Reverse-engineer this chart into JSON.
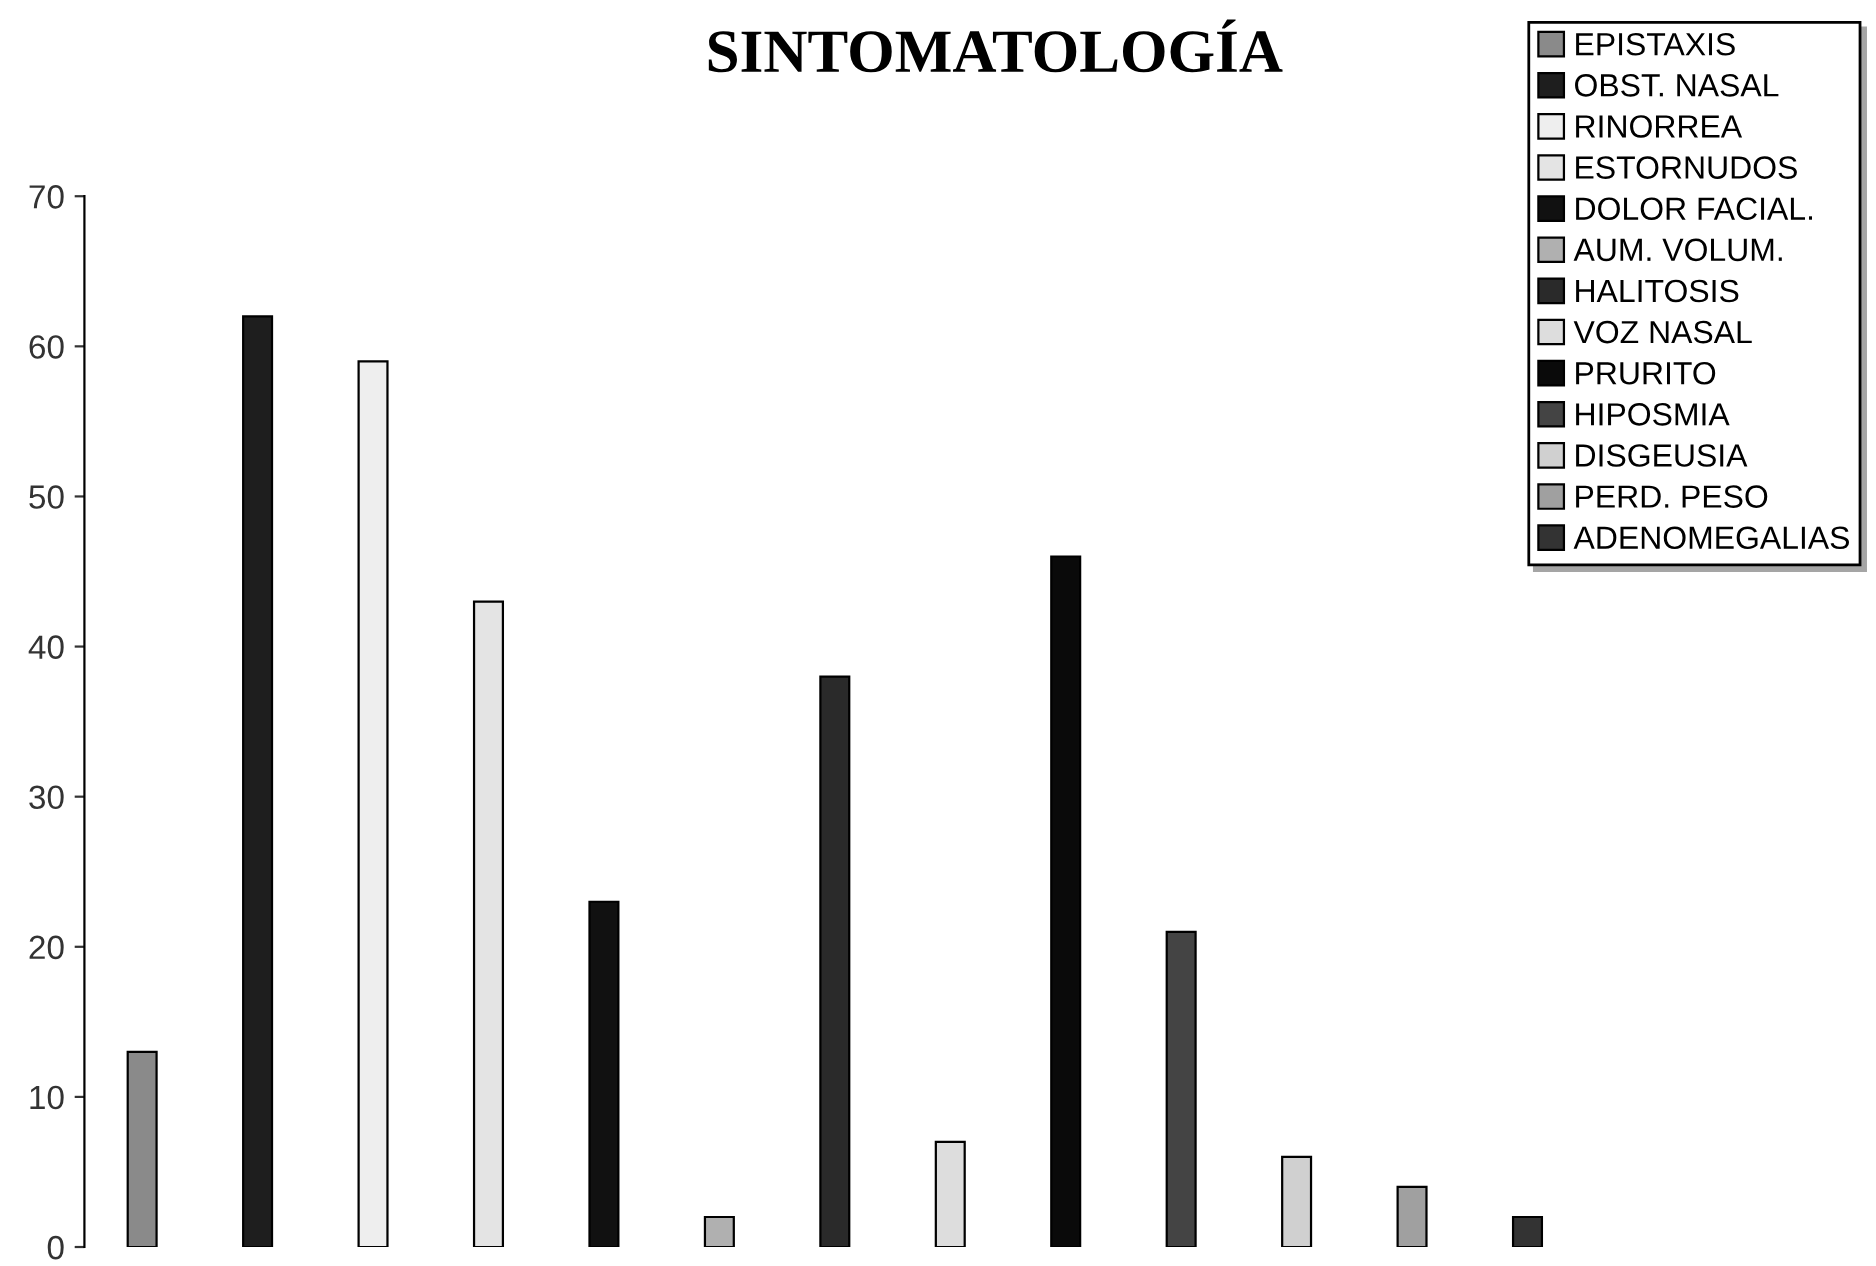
{
  "chart_data": {
    "type": "bar",
    "title": "SINTOMATOLOGÍA",
    "stacked": true,
    "categories": [
      null,
      null,
      null,
      null,
      null,
      null,
      null,
      null,
      null,
      null,
      null,
      null,
      null
    ],
    "series": [
      {
        "name": "EPISTAXIS",
        "color": "#8a8a8a",
        "values": [
          13,
          null,
          null,
          null,
          null,
          null,
          null,
          null,
          null,
          null,
          null,
          null,
          null
        ]
      },
      {
        "name": "OBST. NASAL",
        "color": "#1e1e1e",
        "values": [
          null,
          62,
          null,
          null,
          null,
          null,
          null,
          null,
          null,
          null,
          null,
          null,
          null
        ]
      },
      {
        "name": "RINORREA",
        "color": "#eeeeee",
        "values": [
          null,
          null,
          59,
          null,
          null,
          null,
          null,
          null,
          null,
          null,
          null,
          null,
          null
        ]
      },
      {
        "name": "ESTORNUDOS",
        "color": "#e4e4e4",
        "values": [
          null,
          null,
          null,
          43,
          null,
          null,
          null,
          null,
          null,
          null,
          null,
          null,
          null
        ]
      },
      {
        "name": "DOLOR FACIAL.",
        "color": "#111111",
        "values": [
          null,
          null,
          null,
          null,
          23,
          null,
          null,
          null,
          null,
          null,
          null,
          null,
          null
        ]
      },
      {
        "name": "AUM. VOLUM.",
        "color": "#b0b0b0",
        "values": [
          null,
          null,
          null,
          null,
          null,
          2,
          null,
          null,
          null,
          null,
          null,
          null,
          null
        ]
      },
      {
        "name": "HALITOSIS",
        "color": "#2a2a2a",
        "values": [
          null,
          null,
          null,
          null,
          null,
          null,
          38,
          null,
          null,
          null,
          null,
          null,
          null
        ]
      },
      {
        "name": "VOZ NASAL",
        "color": "#dddddd",
        "values": [
          null,
          null,
          null,
          null,
          null,
          null,
          null,
          7,
          null,
          null,
          null,
          null,
          null
        ]
      },
      {
        "name": "PRURITO",
        "color": "#0a0a0a",
        "values": [
          null,
          null,
          null,
          null,
          null,
          null,
          null,
          null,
          46,
          null,
          null,
          null,
          null
        ]
      },
      {
        "name": "HIPOSMIA",
        "color": "#444444",
        "values": [
          null,
          null,
          null,
          null,
          null,
          null,
          null,
          null,
          null,
          21,
          null,
          null,
          null
        ]
      },
      {
        "name": "DISGEUSIA",
        "color": "#d0d0d0",
        "values": [
          null,
          null,
          null,
          null,
          null,
          null,
          null,
          null,
          null,
          null,
          6,
          null,
          null
        ]
      },
      {
        "name": "PERD. PESO",
        "color": "#a0a0a0",
        "values": [
          null,
          null,
          null,
          null,
          null,
          null,
          null,
          null,
          null,
          null,
          null,
          4,
          null
        ]
      },
      {
        "name": "ADENOMEGALIAS",
        "color": "#333333",
        "values": [
          null,
          null,
          null,
          null,
          null,
          null,
          null,
          null,
          null,
          null,
          null,
          null,
          2
        ]
      }
    ],
    "ylim": [
      0,
      70
    ],
    "yticks": [
      0,
      10,
      20,
      30,
      40,
      50,
      60,
      70
    ],
    "grid": false,
    "legend": "top right"
  }
}
